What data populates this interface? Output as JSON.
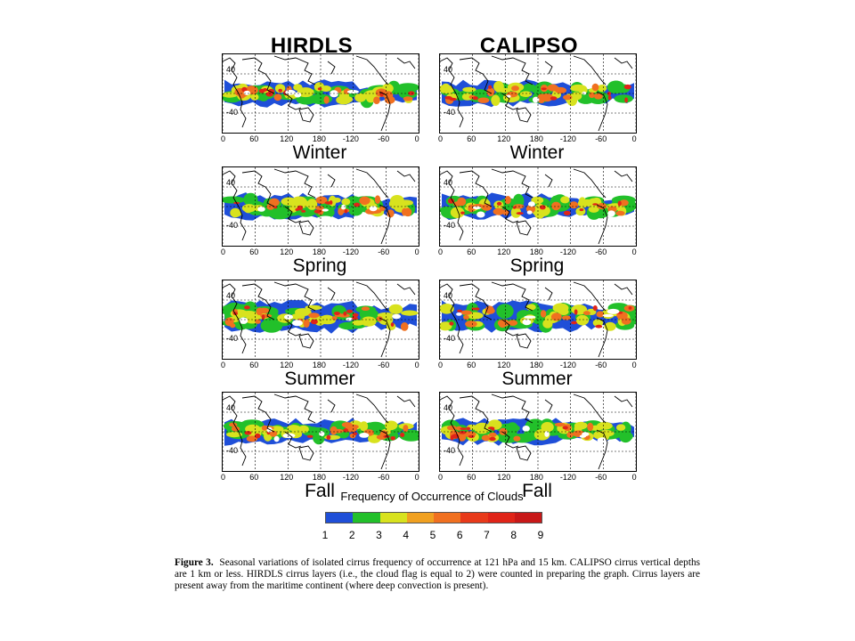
{
  "figure": {
    "columns": [
      {
        "title": "HIRDLS"
      },
      {
        "title": "CALIPSO"
      }
    ],
    "seasons": [
      "Winter",
      "Spring",
      "Summer",
      "Fall"
    ],
    "map_axes": {
      "x_ticks": [
        "0",
        "60",
        "120",
        "180",
        "-120",
        "-60",
        "0"
      ],
      "y_ticks": [
        "40",
        "-40"
      ]
    }
  },
  "legend": {
    "title": "Frequency of Occurrence of Clouds",
    "levels": [
      "1",
      "2",
      "3",
      "4",
      "5",
      "6",
      "7",
      "8",
      "9"
    ],
    "colors": [
      "#1f4fd8",
      "#22c02a",
      "#d8e21e",
      "#f0a020",
      "#f07020",
      "#e83a1a",
      "#e02418",
      "#c81818",
      "#9c1010"
    ]
  },
  "caption": {
    "label": "Figure 3.",
    "text": "Seasonal variations of isolated cirrus frequency of occurrence at 121 hPa and 15 km. CALIPSO cirrus vertical depths are 1 km or less. HIRDLS cirrus layers (i.e., the cloud flag is equal to 2) were counted in preparing the graph. Cirrus layers are present away from the maritime continent (where deep convection is present)."
  }
}
